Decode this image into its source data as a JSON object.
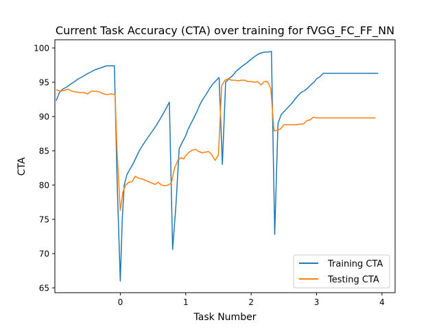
{
  "chart_data": {
    "type": "line",
    "title": "Current Task Accuracy (CTA) over training for fVGG_FC_FF_NN",
    "xlabel": "Task Number",
    "ylabel": "CTA",
    "xlim": [
      -1.0,
      4.2
    ],
    "ylim": [
      64.3,
      101.2
    ],
    "xticks": [
      0,
      1,
      2,
      3,
      4
    ],
    "yticks": [
      65,
      70,
      75,
      80,
      85,
      90,
      95,
      100
    ],
    "grid": false,
    "legend_position": "lower right",
    "series": [
      {
        "name": "Training CTA",
        "color": "#1f77b4",
        "x": [
          -0.98,
          -0.93,
          -0.88,
          -0.82,
          -0.76,
          -0.7,
          -0.64,
          -0.58,
          -0.51,
          -0.45,
          -0.39,
          -0.33,
          -0.27,
          -0.21,
          -0.15,
          -0.09,
          -0.05,
          0.0,
          0.03,
          0.06,
          0.1,
          0.14,
          0.19,
          0.24,
          0.29,
          0.34,
          0.39,
          0.44,
          0.5,
          0.55,
          0.6,
          0.65,
          0.7,
          0.75,
          0.8,
          0.85,
          0.9,
          0.95,
          1.0,
          1.03,
          1.07,
          1.12,
          1.17,
          1.21,
          1.26,
          1.31,
          1.36,
          1.41,
          1.46,
          1.51,
          1.56,
          1.61,
          1.66,
          1.72,
          1.77,
          1.82,
          1.87,
          1.93,
          1.98,
          2.02,
          2.06,
          2.11,
          2.16,
          2.21,
          2.26,
          2.31,
          2.36,
          2.41,
          2.46,
          2.51,
          2.56,
          2.61,
          2.66,
          2.71,
          2.76,
          2.82,
          2.87,
          2.92,
          2.97,
          3.0,
          3.05,
          3.1,
          3.15,
          3.2,
          3.25,
          3.3,
          3.35,
          3.4,
          3.45,
          3.5,
          3.55,
          3.6,
          3.65,
          3.7,
          3.75,
          3.8,
          3.85,
          3.9,
          3.94
        ],
        "y": [
          92.3,
          93.5,
          94.0,
          94.3,
          94.7,
          95.1,
          95.5,
          95.8,
          96.2,
          96.5,
          96.8,
          97.0,
          97.2,
          97.4,
          97.4,
          97.4,
          81.0,
          66.0,
          75.0,
          80.0,
          81.5,
          82.2,
          83.0,
          84.0,
          85.0,
          85.8,
          86.5,
          87.2,
          88.0,
          88.7,
          89.5,
          90.3,
          91.2,
          92.1,
          70.6,
          77.0,
          85.3,
          86.3,
          87.2,
          88.0,
          88.8,
          89.7,
          90.7,
          91.6,
          92.5,
          93.2,
          94.0,
          94.7,
          95.2,
          95.7,
          83.0,
          95.0,
          95.5,
          96.0,
          96.6,
          97.0,
          97.4,
          97.8,
          98.2,
          98.5,
          98.8,
          99.1,
          99.3,
          99.4,
          99.4,
          99.5,
          72.8,
          89.0,
          90.3,
          90.8,
          91.3,
          91.8,
          92.4,
          93.0,
          93.5,
          93.8,
          94.2,
          94.7,
          95.1,
          95.5,
          95.8,
          96.3,
          96.3,
          96.3,
          96.3,
          96.3,
          96.3,
          96.3,
          96.3,
          96.3,
          96.3,
          96.3,
          96.3,
          96.3,
          96.3,
          96.3,
          96.3,
          96.3,
          96.3
        ]
      },
      {
        "name": "Testing CTA",
        "color": "#ff7f0e",
        "x": [
          -0.98,
          -0.92,
          -0.86,
          -0.8,
          -0.74,
          -0.68,
          -0.62,
          -0.56,
          -0.5,
          -0.44,
          -0.38,
          -0.32,
          -0.26,
          -0.2,
          -0.14,
          -0.08,
          -0.05,
          0.0,
          0.04,
          0.08,
          0.13,
          0.18,
          0.23,
          0.28,
          0.33,
          0.38,
          0.43,
          0.48,
          0.53,
          0.58,
          0.63,
          0.68,
          0.73,
          0.78,
          0.83,
          0.88,
          0.93,
          0.97,
          1.0,
          1.05,
          1.1,
          1.15,
          1.2,
          1.25,
          1.3,
          1.35,
          1.4,
          1.45,
          1.5,
          1.55,
          1.6,
          1.65,
          1.7,
          1.75,
          1.8,
          1.85,
          1.9,
          1.95,
          2.0,
          2.05,
          2.1,
          2.15,
          2.2,
          2.25,
          2.3,
          2.35,
          2.4,
          2.45,
          2.5,
          2.55,
          2.6,
          2.65,
          2.7,
          2.75,
          2.8,
          2.85,
          2.9,
          2.95,
          3.0,
          3.05,
          3.1,
          3.15,
          3.2,
          3.25,
          3.3,
          3.35,
          3.4,
          3.45,
          3.5,
          3.55,
          3.6,
          3.65,
          3.7,
          3.75,
          3.8,
          3.85,
          3.9
        ],
        "y": [
          93.9,
          93.7,
          93.8,
          94.0,
          93.7,
          93.6,
          93.5,
          93.5,
          93.3,
          93.7,
          93.7,
          93.6,
          93.3,
          93.2,
          93.3,
          93.2,
          85.0,
          76.3,
          79.0,
          80.0,
          80.4,
          80.5,
          81.3,
          81.0,
          80.9,
          80.7,
          80.5,
          80.3,
          80.1,
          80.4,
          80.0,
          79.9,
          80.0,
          80.3,
          82.5,
          83.6,
          84.0,
          83.8,
          84.3,
          84.8,
          85.1,
          85.2,
          84.9,
          84.7,
          84.8,
          84.9,
          84.4,
          83.6,
          84.4,
          94.5,
          95.3,
          95.5,
          95.3,
          95.3,
          95.2,
          95.3,
          95.3,
          95.1,
          95.1,
          95.0,
          95.1,
          94.6,
          95.1,
          95.1,
          94.1,
          87.9,
          88.0,
          88.2,
          88.8,
          88.8,
          88.8,
          88.8,
          88.8,
          88.9,
          88.9,
          89.4,
          89.5,
          89.9,
          89.8,
          89.8,
          89.8,
          89.8,
          89.8,
          89.8,
          89.8,
          89.8,
          89.8,
          89.8,
          89.8,
          89.8,
          89.8,
          89.8,
          89.8,
          89.8,
          89.8,
          89.8,
          89.8
        ]
      }
    ]
  }
}
